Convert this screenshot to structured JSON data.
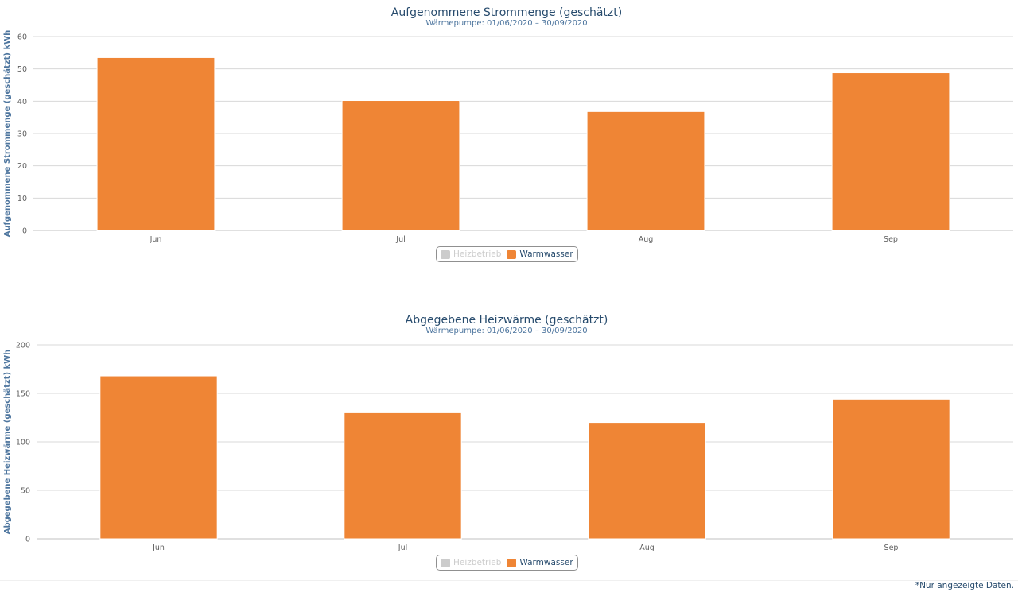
{
  "chart_data": [
    {
      "type": "bar",
      "title": "Aufgenommene Strommenge (geschätzt)",
      "subtitle": "Wärmepumpe: 01/06/2020 – 30/09/2020",
      "ylabel": "Aufgenommene Strommenge (geschätzt) kWh",
      "xlabel": "",
      "categories": [
        "Jun",
        "Jul",
        "Aug",
        "Sep"
      ],
      "ylim": [
        0,
        60
      ],
      "yticks": [
        0,
        10,
        20,
        30,
        40,
        50,
        60
      ],
      "grid": true,
      "legend_position": "bottom-center",
      "series": [
        {
          "name": "Heizbetrieb",
          "values": [
            0,
            0,
            0,
            0
          ],
          "color": "#cccccc",
          "hidden": true
        },
        {
          "name": "Warmwasser",
          "values": [
            53.5,
            40.2,
            36.8,
            48.8
          ],
          "color": "#ef8535",
          "hidden": false
        }
      ]
    },
    {
      "type": "bar",
      "title": "Abgegebene Heizwärme (geschätzt)",
      "subtitle": "Wärmepumpe: 01/06/2020 – 30/09/2020",
      "ylabel": "Abgegebene Heizwärme (geschätzt) kWh",
      "xlabel": "",
      "categories": [
        "Jun",
        "Jul",
        "Aug",
        "Sep"
      ],
      "ylim": [
        0,
        200
      ],
      "yticks": [
        0,
        50,
        100,
        150,
        200
      ],
      "grid": true,
      "legend_position": "bottom-center",
      "series": [
        {
          "name": "Heizbetrieb",
          "values": [
            0,
            0,
            0,
            0
          ],
          "color": "#cccccc",
          "hidden": true
        },
        {
          "name": "Warmwasser",
          "values": [
            168,
            130,
            120,
            144
          ],
          "color": "#ef8535",
          "hidden": false
        }
      ]
    }
  ],
  "footnote": "*Nur angezeigte Daten."
}
